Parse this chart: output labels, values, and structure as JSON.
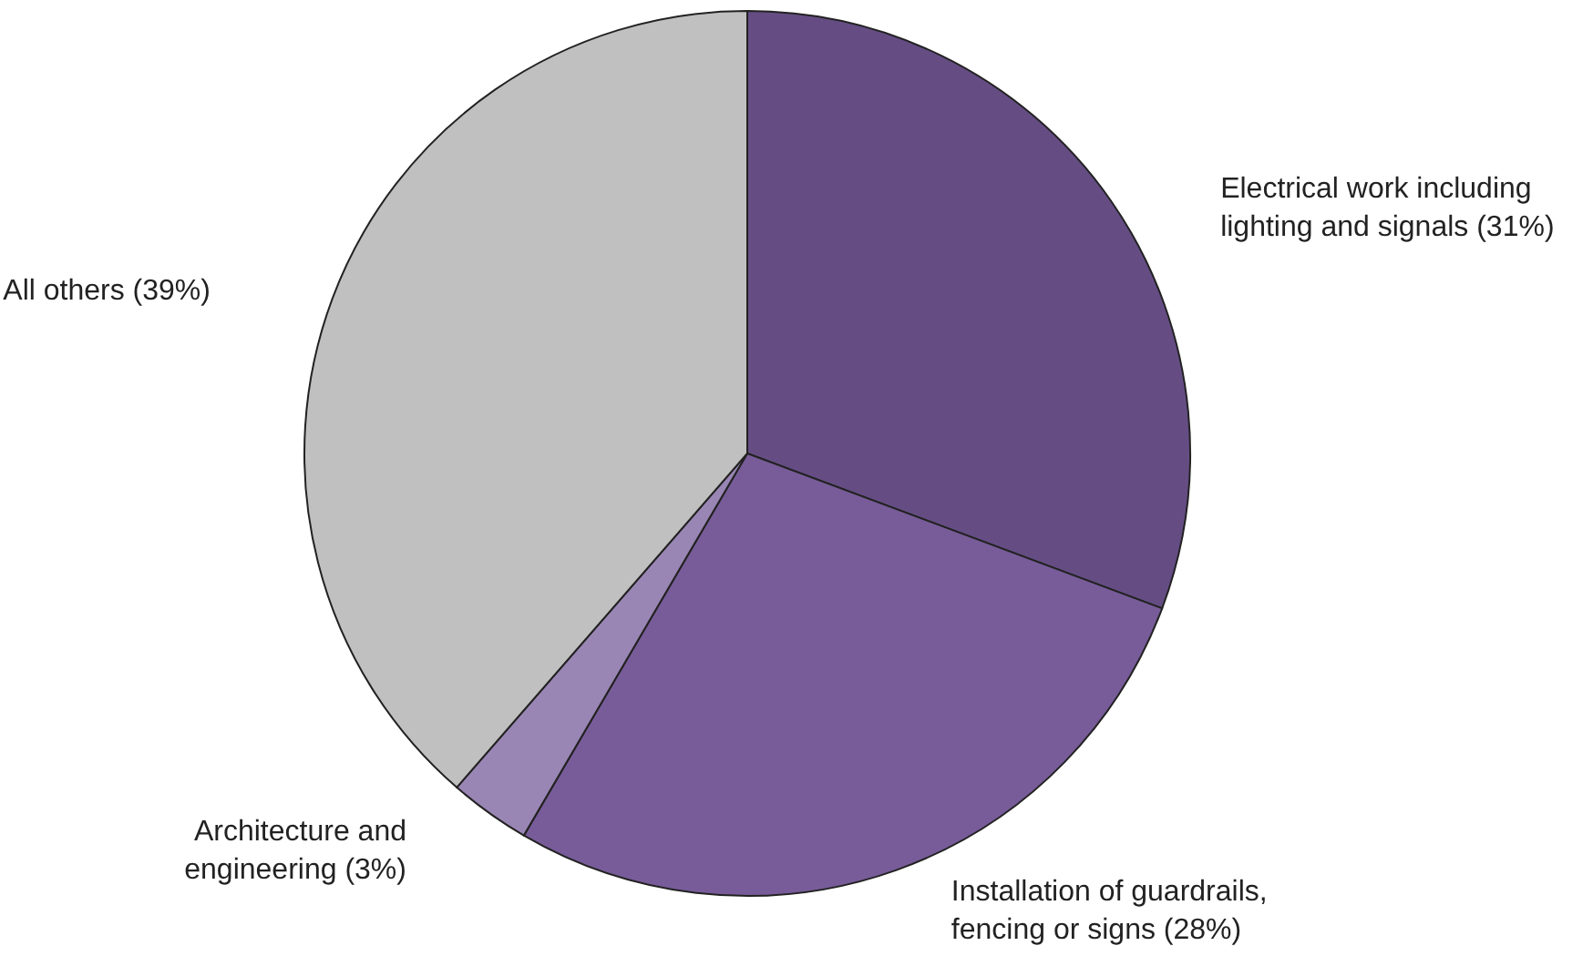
{
  "chart_data": {
    "type": "pie",
    "categories": [
      "Electrical work including lighting and signals (31%)",
      "Installation of guardrails, fencing or signs (28%)",
      "Architecture and engineering (3%)",
      "All others (39%)"
    ],
    "values": [
      31,
      28,
      3,
      39
    ],
    "colors": [
      "#654d84",
      "#785c99",
      "#9a86b5",
      "#c0c0c0"
    ]
  }
}
